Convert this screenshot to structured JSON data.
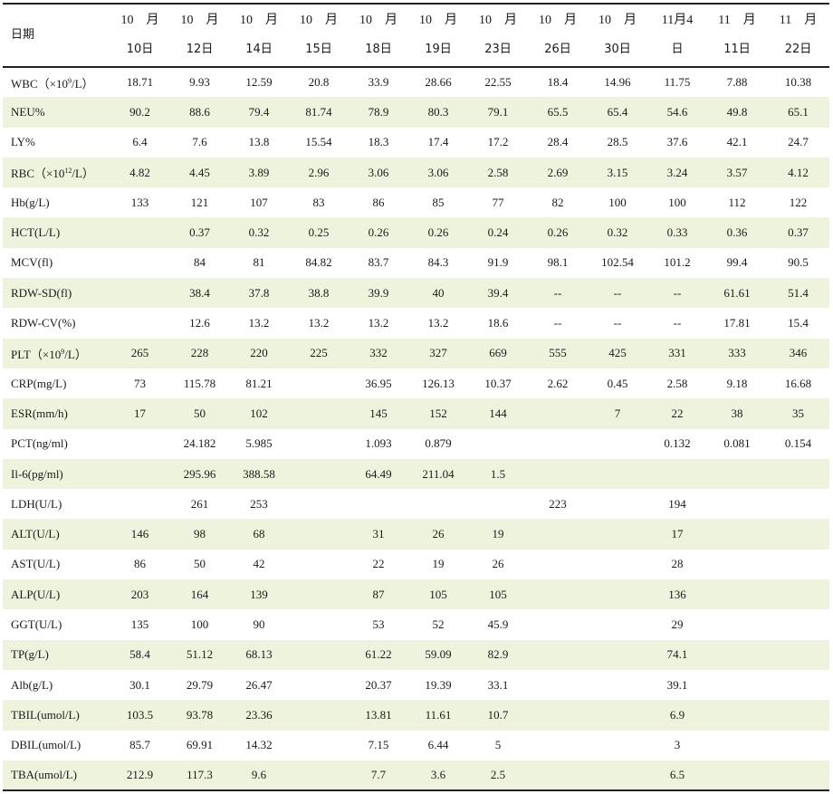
{
  "table": {
    "corner": "日期",
    "dates": [
      {
        "top": "10　月",
        "bottom": "10日"
      },
      {
        "top": "10　月",
        "bottom": "12日"
      },
      {
        "top": "10　月",
        "bottom": "14日"
      },
      {
        "top": "10　月",
        "bottom": "15日"
      },
      {
        "top": "10　月",
        "bottom": "18日"
      },
      {
        "top": "10　月",
        "bottom": "19日"
      },
      {
        "top": "10　月",
        "bottom": "23日"
      },
      {
        "top": "10　月",
        "bottom": "26日"
      },
      {
        "top": "10　月",
        "bottom": "30日"
      },
      {
        "top": "11月4",
        "bottom": "日"
      },
      {
        "top": "11　月",
        "bottom": "11日"
      },
      {
        "top": "11　月",
        "bottom": "22日"
      }
    ],
    "rows": [
      {
        "label": {
          "pre": "WBC（×10",
          "sup": "9",
          "post": "/L）"
        },
        "values": [
          "18.71",
          "9.93",
          "12.59",
          "20.8",
          "33.9",
          "28.66",
          "22.55",
          "18.4",
          "14.96",
          "11.75",
          "7.88",
          "10.38"
        ]
      },
      {
        "label": {
          "pre": "NEU%"
        },
        "values": [
          "90.2",
          "88.6",
          "79.4",
          "81.74",
          "78.9",
          "80.3",
          "79.1",
          "65.5",
          "65.4",
          "54.6",
          "49.8",
          "65.1"
        ]
      },
      {
        "label": {
          "pre": "LY%"
        },
        "values": [
          "6.4",
          "7.6",
          "13.8",
          "15.54",
          "18.3",
          "17.4",
          "17.2",
          "28.4",
          "28.5",
          "37.6",
          "42.1",
          "24.7"
        ]
      },
      {
        "label": {
          "pre": "RBC（×10",
          "sup": "12",
          "post": "/L）"
        },
        "values": [
          "4.82",
          "4.45",
          "3.89",
          "2.96",
          "3.06",
          "3.06",
          "2.58",
          "2.69",
          "3.15",
          "3.24",
          "3.57",
          "4.12"
        ]
      },
      {
        "label": {
          "pre": "Hb(g/L)"
        },
        "values": [
          "133",
          "121",
          "107",
          "83",
          "86",
          "85",
          "77",
          "82",
          "100",
          "100",
          "112",
          "122"
        ]
      },
      {
        "label": {
          "pre": "HCT(L/L)"
        },
        "values": [
          "",
          "0.37",
          "0.32",
          "0.25",
          "0.26",
          "0.26",
          "0.24",
          "0.26",
          "0.32",
          "0.33",
          "0.36",
          "0.37"
        ]
      },
      {
        "label": {
          "pre": "MCV(fl)"
        },
        "values": [
          "",
          "84",
          "81",
          "84.82",
          "83.7",
          "84.3",
          "91.9",
          "98.1",
          "102.54",
          "101.2",
          "99.4",
          "90.5"
        ]
      },
      {
        "label": {
          "pre": "RDW-SD(fl)"
        },
        "values": [
          "",
          "38.4",
          "37.8",
          "38.8",
          "39.9",
          "40",
          "39.4",
          "--",
          "--",
          "--",
          "61.61",
          "51.4"
        ]
      },
      {
        "label": {
          "pre": "RDW-CV(%)"
        },
        "values": [
          "",
          "12.6",
          "13.2",
          "13.2",
          "13.2",
          "13.2",
          "18.6",
          "--",
          "--",
          "--",
          "17.81",
          "15.4"
        ]
      },
      {
        "label": {
          "pre": "PLT（×10",
          "sup": "9",
          "post": "/L）"
        },
        "values": [
          "265",
          "228",
          "220",
          "225",
          "332",
          "327",
          "669",
          "555",
          "425",
          "331",
          "333",
          "346"
        ]
      },
      {
        "label": {
          "pre": "CRP(mg/L)"
        },
        "values": [
          "73",
          "115.78",
          "81.21",
          "",
          "36.95",
          "126.13",
          "10.37",
          "2.62",
          "0.45",
          "2.58",
          "9.18",
          "16.68"
        ]
      },
      {
        "label": {
          "pre": "ESR(mm/h)"
        },
        "values": [
          "17",
          "50",
          "102",
          "",
          "145",
          "152",
          "144",
          "",
          "7",
          "22",
          "38",
          "35"
        ]
      },
      {
        "label": {
          "pre": "PCT(ng/ml)"
        },
        "values": [
          "",
          "24.182",
          "5.985",
          "",
          "1.093",
          "0.879",
          "",
          "",
          "",
          "0.132",
          "0.081",
          "0.154"
        ]
      },
      {
        "label": {
          "pre": "Il-6(pg/ml)"
        },
        "values": [
          "",
          "295.96",
          "388.58",
          "",
          "64.49",
          "211.04",
          "1.5",
          "",
          "",
          "",
          "",
          ""
        ]
      },
      {
        "label": {
          "pre": "LDH(U/L)"
        },
        "values": [
          "",
          "261",
          "253",
          "",
          "",
          "",
          "",
          "223",
          "",
          "194",
          "",
          ""
        ]
      },
      {
        "label": {
          "pre": "ALT(U/L)"
        },
        "values": [
          "146",
          "98",
          "68",
          "",
          "31",
          "26",
          "19",
          "",
          "",
          "17",
          "",
          ""
        ]
      },
      {
        "label": {
          "pre": "AST(U/L)"
        },
        "values": [
          "86",
          "50",
          "42",
          "",
          "22",
          "19",
          "26",
          "",
          "",
          "28",
          "",
          ""
        ]
      },
      {
        "label": {
          "pre": "ALP(U/L)"
        },
        "values": [
          "203",
          "164",
          "139",
          "",
          "87",
          "105",
          "105",
          "",
          "",
          "136",
          "",
          ""
        ]
      },
      {
        "label": {
          "pre": "GGT(U/L)"
        },
        "values": [
          "135",
          "100",
          "90",
          "",
          "53",
          "52",
          "45.9",
          "",
          "",
          "29",
          "",
          ""
        ]
      },
      {
        "label": {
          "pre": "TP(g/L)"
        },
        "values": [
          "58.4",
          "51.12",
          "68.13",
          "",
          "61.22",
          "59.09",
          "82.9",
          "",
          "",
          "74.1",
          "",
          ""
        ]
      },
      {
        "label": {
          "pre": "Alb(g/L)"
        },
        "values": [
          "30.1",
          "29.79",
          "26.47",
          "",
          "20.37",
          "19.39",
          "33.1",
          "",
          "",
          "39.1",
          "",
          ""
        ]
      },
      {
        "label": {
          "pre": "TBIL(umol/L)"
        },
        "values": [
          "103.5",
          "93.78",
          "23.36",
          "",
          "13.81",
          "11.61",
          "10.7",
          "",
          "",
          "6.9",
          "",
          ""
        ]
      },
      {
        "label": {
          "pre": "DBIL(umol/L)"
        },
        "values": [
          "85.7",
          "69.91",
          "14.32",
          "",
          "7.15",
          "6.44",
          "5",
          "",
          "",
          "3",
          "",
          ""
        ]
      },
      {
        "label": {
          "pre": "TBA(umol/L)"
        },
        "values": [
          "212.9",
          "117.3",
          "9.6",
          "",
          "7.7",
          "3.6",
          "2.5",
          "",
          "",
          "6.5",
          "",
          ""
        ]
      }
    ]
  }
}
